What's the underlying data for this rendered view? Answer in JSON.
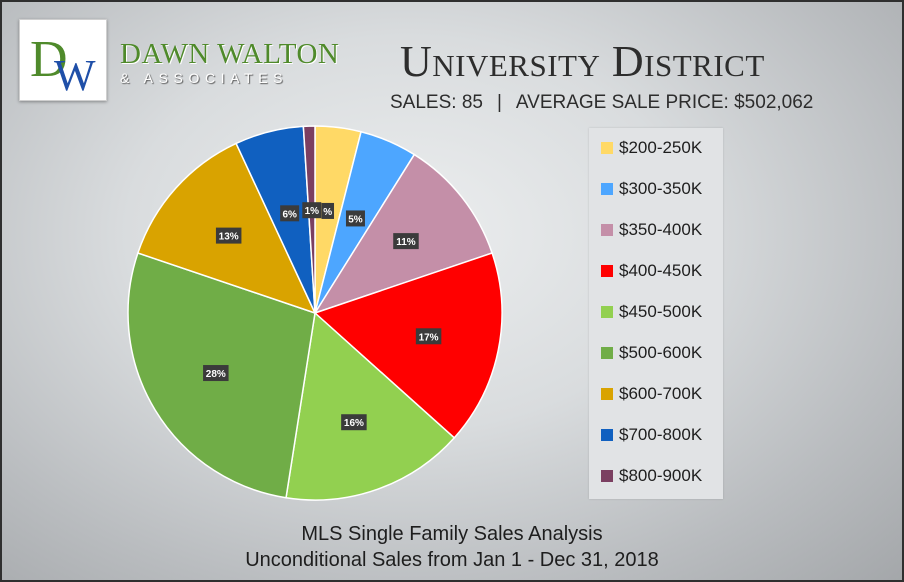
{
  "brand": {
    "logo_letter_d": "D",
    "logo_letter_w": "W",
    "name": "DAWN WALTON",
    "sub": "& ASSOCIATES"
  },
  "header": {
    "title": "University District",
    "sales": "SALES: 85",
    "separator": "|",
    "average": "AVERAGE SALE PRICE: $502,062"
  },
  "footer": {
    "line1": "MLS Single Family Sales Analysis",
    "line2": "Unconditional Sales from Jan 1 - Dec 31, 2018"
  },
  "chart_data": {
    "type": "pie",
    "unit": "%",
    "legend_position": "right",
    "slices": [
      {
        "label": "$200-250K",
        "value": 4,
        "display": "%",
        "color": "#ffd966"
      },
      {
        "label": "$300-350K",
        "value": 5,
        "display": "5%",
        "color": "#4da6ff"
      },
      {
        "label": "$350-400K",
        "value": 11,
        "display": "11%",
        "color": "#c48fa8"
      },
      {
        "label": "$400-450K",
        "value": 17,
        "display": "17%",
        "color": "#ff0000"
      },
      {
        "label": "$450-500K",
        "value": 16,
        "display": "16%",
        "color": "#92d050"
      },
      {
        "label": "$500-600K",
        "value": 28,
        "display": "28%",
        "color": "#70ad47"
      },
      {
        "label": "$600-700K",
        "value": 13,
        "display": "13%",
        "color": "#d9a300"
      },
      {
        "label": "$700-800K",
        "value": 6,
        "display": "6%",
        "color": "#1060c0"
      },
      {
        "label": "$800-900K",
        "value": 1,
        "display": "1%",
        "color": "#7b3f61"
      }
    ]
  }
}
